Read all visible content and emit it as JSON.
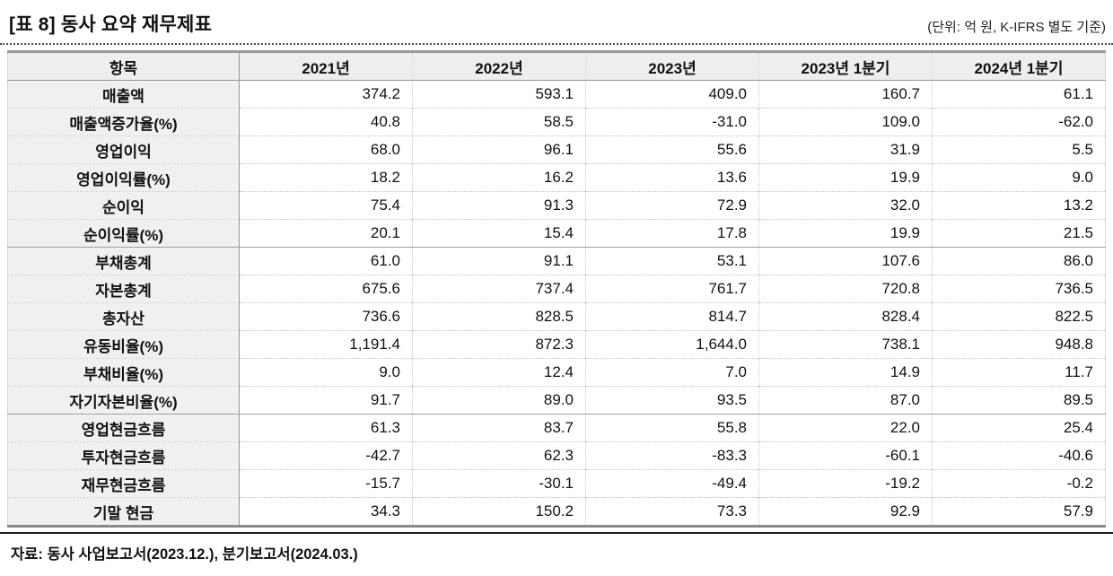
{
  "title": "[표 8] 동사 요약 재무제표",
  "unit_note": "(단위: 억 원, K-IFRS 별도 기준)",
  "source_note": "자료: 동사 사업보고서(2023.12.), 분기보고서(2024.03.)",
  "colors": {
    "header_bg": "#efeeec",
    "label_column_bg": "#f1f0ee",
    "strong_border": "#979797",
    "dotted_border": "#c6c6c6",
    "table_outer_border": "#8a8a8a",
    "text": "#111111"
  },
  "table": {
    "headers": [
      "항목",
      "2021년",
      "2022년",
      "2023년",
      "2023년 1분기",
      "2024년 1분기"
    ],
    "rows": [
      {
        "label": "매출액",
        "values": [
          "374.2",
          "593.1",
          "409.0",
          "160.7",
          "61.1"
        ],
        "section_start": false
      },
      {
        "label": "매출액증가율(%)",
        "values": [
          "40.8",
          "58.5",
          "-31.0",
          "109.0",
          "-62.0"
        ],
        "section_start": false
      },
      {
        "label": "영업이익",
        "values": [
          "68.0",
          "96.1",
          "55.6",
          "31.9",
          "5.5"
        ],
        "section_start": false
      },
      {
        "label": "영업이익률(%)",
        "values": [
          "18.2",
          "16.2",
          "13.6",
          "19.9",
          "9.0"
        ],
        "section_start": false
      },
      {
        "label": "순이익",
        "values": [
          "75.4",
          "91.3",
          "72.9",
          "32.0",
          "13.2"
        ],
        "section_start": false
      },
      {
        "label": "순이익률(%)",
        "values": [
          "20.1",
          "15.4",
          "17.8",
          "19.9",
          "21.5"
        ],
        "section_start": false
      },
      {
        "label": "부채총계",
        "values": [
          "61.0",
          "91.1",
          "53.1",
          "107.6",
          "86.0"
        ],
        "section_start": true
      },
      {
        "label": "자본총계",
        "values": [
          "675.6",
          "737.4",
          "761.7",
          "720.8",
          "736.5"
        ],
        "section_start": false
      },
      {
        "label": "총자산",
        "values": [
          "736.6",
          "828.5",
          "814.7",
          "828.4",
          "822.5"
        ],
        "section_start": false
      },
      {
        "label": "유동비율(%)",
        "values": [
          "1,191.4",
          "872.3",
          "1,644.0",
          "738.1",
          "948.8"
        ],
        "section_start": false
      },
      {
        "label": "부채비율(%)",
        "values": [
          "9.0",
          "12.4",
          "7.0",
          "14.9",
          "11.7"
        ],
        "section_start": false
      },
      {
        "label": "자기자본비율(%)",
        "values": [
          "91.7",
          "89.0",
          "93.5",
          "87.0",
          "89.5"
        ],
        "section_start": false
      },
      {
        "label": "영업현금흐름",
        "values": [
          "61.3",
          "83.7",
          "55.8",
          "22.0",
          "25.4"
        ],
        "section_start": true
      },
      {
        "label": "투자현금흐름",
        "values": [
          "-42.7",
          "62.3",
          "-83.3",
          "-60.1",
          "-40.6"
        ],
        "section_start": false
      },
      {
        "label": "재무현금흐름",
        "values": [
          "-15.7",
          "-30.1",
          "-49.4",
          "-19.2",
          "-0.2"
        ],
        "section_start": false
      },
      {
        "label": "기말 현금",
        "values": [
          "34.3",
          "150.2",
          "73.3",
          "92.9",
          "57.9"
        ],
        "section_start": false
      }
    ]
  }
}
